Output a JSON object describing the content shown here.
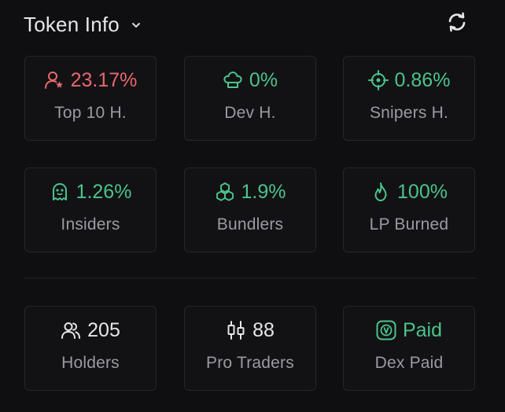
{
  "header": {
    "title": "Token Info",
    "chevron_icon": "chevron-down-icon",
    "refresh_icon": "refresh-icon"
  },
  "colors": {
    "red": "#e8686c",
    "green": "#4cc38a",
    "white": "#e6e6ea",
    "label": "#9a9aa3"
  },
  "stats": {
    "top10": {
      "value": "23.17%",
      "label": "Top 10 H.",
      "icon": "user-star-icon",
      "tone": "red"
    },
    "dev": {
      "value": "0%",
      "label": "Dev H.",
      "icon": "chef-hat-icon",
      "tone": "green"
    },
    "snipers": {
      "value": "0.86%",
      "label": "Snipers H.",
      "icon": "crosshair-icon",
      "tone": "green"
    },
    "insiders": {
      "value": "1.26%",
      "label": "Insiders",
      "icon": "ghost-icon",
      "tone": "green"
    },
    "bundlers": {
      "value": "1.9%",
      "label": "Bundlers",
      "icon": "boxes-icon",
      "tone": "green"
    },
    "lp_burned": {
      "value": "100%",
      "label": "LP Burned",
      "icon": "flame-icon",
      "tone": "green"
    },
    "holders": {
      "value": "205",
      "label": "Holders",
      "icon": "users-icon",
      "tone": "white"
    },
    "pro_traders": {
      "value": "88",
      "label": "Pro Traders",
      "icon": "candlestick-icon",
      "tone": "white"
    },
    "dex_paid": {
      "value": "Paid",
      "label": "Dex Paid",
      "icon": "dex-badge-icon",
      "tone": "green"
    }
  }
}
